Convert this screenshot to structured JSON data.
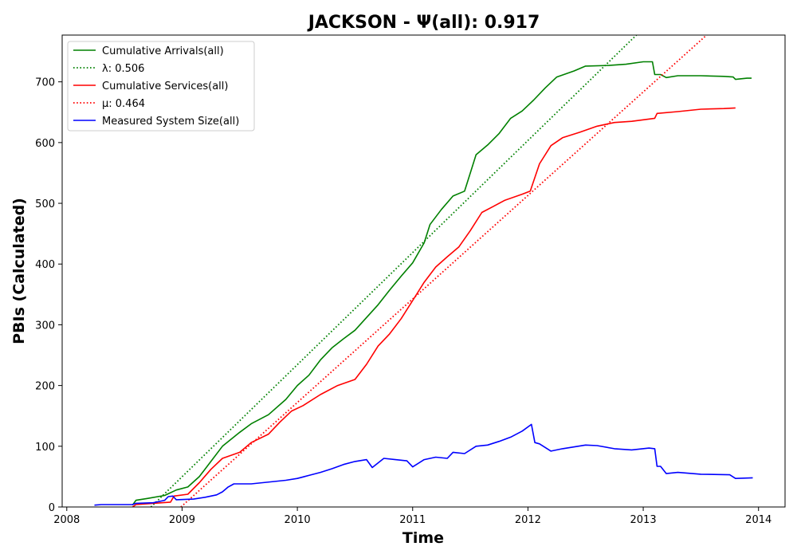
{
  "chart_data": {
    "type": "line",
    "title": "JACKSON -  Ψ(all): 0.917",
    "xlabel": "Time",
    "ylabel": "PBIs (Calculated)",
    "xlim": [
      2007.96,
      2014.23
    ],
    "ylim": [
      0,
      777
    ],
    "x_ticks": [
      {
        "value": 2008,
        "label": "2008"
      },
      {
        "value": 2009,
        "label": "2009"
      },
      {
        "value": 2010,
        "label": "2010"
      },
      {
        "value": 2011,
        "label": "2011"
      },
      {
        "value": 2012,
        "label": "2012"
      },
      {
        "value": 2013,
        "label": "2013"
      },
      {
        "value": 2014,
        "label": "2014"
      }
    ],
    "y_ticks": [
      {
        "value": 0,
        "label": "0"
      },
      {
        "value": 100,
        "label": "100"
      },
      {
        "value": 200,
        "label": "200"
      },
      {
        "value": 300,
        "label": "300"
      },
      {
        "value": 400,
        "label": "400"
      },
      {
        "value": 500,
        "label": "500"
      },
      {
        "value": 600,
        "label": "600"
      },
      {
        "value": 700,
        "label": "700"
      }
    ],
    "grid": false,
    "legend_position": "upper-left",
    "legend": [
      {
        "label": "Cumulative Arrivals(all)",
        "series": "arrivals"
      },
      {
        "label": "λ: 0.506",
        "series": "lambda"
      },
      {
        "label": "Cumulative Services(all)",
        "series": "services"
      },
      {
        "label": "μ: 0.464",
        "series": "mu"
      },
      {
        "label": "Measured System Size(all)",
        "series": "system_size"
      }
    ],
    "series": [
      {
        "key": "arrivals",
        "name": "Cumulative Arrivals(all)",
        "color": "#008000",
        "style": "solid",
        "points": [
          [
            2008.57,
            3
          ],
          [
            2008.6,
            11
          ],
          [
            2008.7,
            14
          ],
          [
            2008.85,
            19
          ],
          [
            2008.95,
            28
          ],
          [
            2009.05,
            33
          ],
          [
            2009.15,
            50
          ],
          [
            2009.25,
            75
          ],
          [
            2009.35,
            100
          ],
          [
            2009.5,
            123
          ],
          [
            2009.6,
            137
          ],
          [
            2009.75,
            152
          ],
          [
            2009.9,
            177
          ],
          [
            2010.0,
            200
          ],
          [
            2010.1,
            217
          ],
          [
            2010.2,
            242
          ],
          [
            2010.3,
            262
          ],
          [
            2010.4,
            277
          ],
          [
            2010.5,
            291
          ],
          [
            2010.6,
            312
          ],
          [
            2010.7,
            333
          ],
          [
            2010.8,
            357
          ],
          [
            2010.9,
            380
          ],
          [
            2011.0,
            402
          ],
          [
            2011.1,
            435
          ],
          [
            2011.15,
            465
          ],
          [
            2011.25,
            490
          ],
          [
            2011.35,
            512
          ],
          [
            2011.45,
            520
          ],
          [
            2011.5,
            550
          ],
          [
            2011.55,
            580
          ],
          [
            2011.65,
            596
          ],
          [
            2011.75,
            615
          ],
          [
            2011.85,
            640
          ],
          [
            2011.95,
            652
          ],
          [
            2012.05,
            670
          ],
          [
            2012.15,
            690
          ],
          [
            2012.25,
            708
          ],
          [
            2012.4,
            718
          ],
          [
            2012.5,
            726
          ],
          [
            2012.7,
            727
          ],
          [
            2012.85,
            729
          ],
          [
            2013.0,
            733
          ],
          [
            2013.08,
            733
          ],
          [
            2013.1,
            712
          ],
          [
            2013.15,
            712
          ],
          [
            2013.2,
            707
          ],
          [
            2013.3,
            710
          ],
          [
            2013.5,
            710
          ],
          [
            2013.7,
            709
          ],
          [
            2013.78,
            708
          ],
          [
            2013.8,
            704
          ],
          [
            2013.9,
            706
          ],
          [
            2013.94,
            706
          ]
        ]
      },
      {
        "key": "lambda",
        "name": "λ: 0.506",
        "color": "#008000",
        "style": "dotted",
        "points": [
          [
            2008.73,
            0
          ],
          [
            2013.0,
            788
          ]
        ]
      },
      {
        "key": "services",
        "name": "Cumulative Services(all)",
        "color": "#ff0000",
        "style": "solid",
        "points": [
          [
            2008.57,
            0
          ],
          [
            2008.6,
            4
          ],
          [
            2008.9,
            8
          ],
          [
            2008.93,
            18
          ],
          [
            2009.05,
            21
          ],
          [
            2009.15,
            40
          ],
          [
            2009.25,
            62
          ],
          [
            2009.35,
            80
          ],
          [
            2009.5,
            90
          ],
          [
            2009.6,
            106
          ],
          [
            2009.75,
            120
          ],
          [
            2009.85,
            140
          ],
          [
            2009.95,
            158
          ],
          [
            2010.05,
            167
          ],
          [
            2010.2,
            185
          ],
          [
            2010.35,
            200
          ],
          [
            2010.5,
            210
          ],
          [
            2010.6,
            235
          ],
          [
            2010.7,
            265
          ],
          [
            2010.8,
            285
          ],
          [
            2010.9,
            310
          ],
          [
            2011.0,
            340
          ],
          [
            2011.1,
            370
          ],
          [
            2011.2,
            395
          ],
          [
            2011.3,
            412
          ],
          [
            2011.4,
            428
          ],
          [
            2011.5,
            455
          ],
          [
            2011.6,
            485
          ],
          [
            2011.7,
            495
          ],
          [
            2011.8,
            505
          ],
          [
            2011.95,
            515
          ],
          [
            2012.02,
            520
          ],
          [
            2012.1,
            565
          ],
          [
            2012.2,
            595
          ],
          [
            2012.3,
            608
          ],
          [
            2012.45,
            617
          ],
          [
            2012.6,
            627
          ],
          [
            2012.75,
            633
          ],
          [
            2012.9,
            635
          ],
          [
            2013.1,
            640
          ],
          [
            2013.12,
            648
          ],
          [
            2013.3,
            651
          ],
          [
            2013.5,
            655
          ],
          [
            2013.7,
            656
          ],
          [
            2013.8,
            657
          ]
        ]
      },
      {
        "key": "mu",
        "name": "μ: 0.464",
        "color": "#ff0000",
        "style": "dotted",
        "points": [
          [
            2008.99,
            0
          ],
          [
            2013.55,
            777
          ]
        ]
      },
      {
        "key": "system_size",
        "name": "Measured System Size(all)",
        "color": "#0000ff",
        "style": "solid",
        "points": [
          [
            2008.24,
            3
          ],
          [
            2008.3,
            4
          ],
          [
            2008.57,
            4
          ],
          [
            2008.6,
            6
          ],
          [
            2008.75,
            7
          ],
          [
            2008.85,
            11
          ],
          [
            2008.88,
            17
          ],
          [
            2008.92,
            18
          ],
          [
            2008.95,
            12
          ],
          [
            2009.1,
            13
          ],
          [
            2009.2,
            16
          ],
          [
            2009.3,
            20
          ],
          [
            2009.35,
            25
          ],
          [
            2009.4,
            33
          ],
          [
            2009.45,
            38
          ],
          [
            2009.6,
            38
          ],
          [
            2009.8,
            42
          ],
          [
            2009.9,
            44
          ],
          [
            2010.0,
            47
          ],
          [
            2010.1,
            52
          ],
          [
            2010.2,
            57
          ],
          [
            2010.3,
            63
          ],
          [
            2010.4,
            70
          ],
          [
            2010.5,
            75
          ],
          [
            2010.6,
            78
          ],
          [
            2010.65,
            65
          ],
          [
            2010.75,
            80
          ],
          [
            2010.85,
            78
          ],
          [
            2010.95,
            76
          ],
          [
            2011.0,
            66
          ],
          [
            2011.1,
            78
          ],
          [
            2011.2,
            82
          ],
          [
            2011.3,
            80
          ],
          [
            2011.35,
            90
          ],
          [
            2011.45,
            88
          ],
          [
            2011.55,
            100
          ],
          [
            2011.65,
            102
          ],
          [
            2011.75,
            108
          ],
          [
            2011.85,
            115
          ],
          [
            2011.95,
            125
          ],
          [
            2012.03,
            136
          ],
          [
            2012.06,
            106
          ],
          [
            2012.1,
            104
          ],
          [
            2012.2,
            92
          ],
          [
            2012.3,
            96
          ],
          [
            2012.5,
            102
          ],
          [
            2012.6,
            101
          ],
          [
            2012.75,
            96
          ],
          [
            2012.9,
            94
          ],
          [
            2013.05,
            97
          ],
          [
            2013.1,
            96
          ],
          [
            2013.12,
            67
          ],
          [
            2013.15,
            67
          ],
          [
            2013.2,
            55
          ],
          [
            2013.3,
            57
          ],
          [
            2013.5,
            54
          ],
          [
            2013.75,
            53
          ],
          [
            2013.8,
            47
          ],
          [
            2013.95,
            48
          ]
        ]
      }
    ]
  }
}
